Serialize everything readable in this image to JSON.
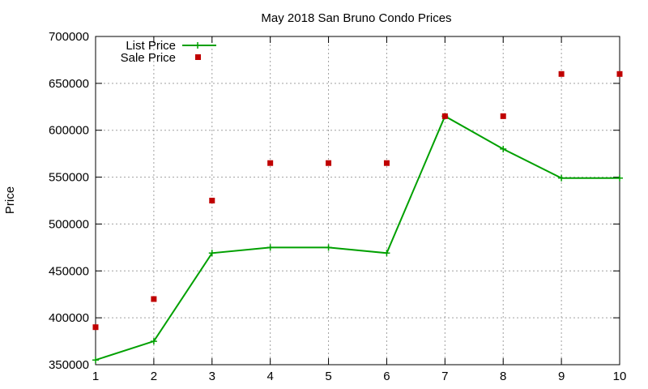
{
  "chart_data": {
    "type": "line",
    "title": "May 2018 San Bruno Condo Prices",
    "xlabel": "",
    "ylabel": "Price",
    "x": [
      1,
      2,
      3,
      4,
      5,
      6,
      7,
      8,
      9,
      10
    ],
    "xlim": [
      1,
      10
    ],
    "ylim": [
      350000,
      700000
    ],
    "xticks": [
      "1",
      "2",
      "3",
      "4",
      "5",
      "6",
      "7",
      "8",
      "9",
      "10"
    ],
    "yticks": [
      "350000",
      "400000",
      "450000",
      "500000",
      "550000",
      "600000",
      "650000",
      "700000"
    ],
    "grid": true,
    "legend_position": "top-left",
    "series": [
      {
        "name": "List Price",
        "style": "line-with-plus-markers",
        "color": "#00a000",
        "values": [
          355000,
          375000,
          469000,
          475000,
          475000,
          469000,
          615000,
          580000,
          549000,
          549000
        ]
      },
      {
        "name": "Sale Price",
        "style": "square-points",
        "color": "#c00000",
        "values": [
          390000,
          420000,
          525000,
          565000,
          565000,
          565000,
          615000,
          615000,
          660000,
          660000
        ]
      }
    ]
  }
}
